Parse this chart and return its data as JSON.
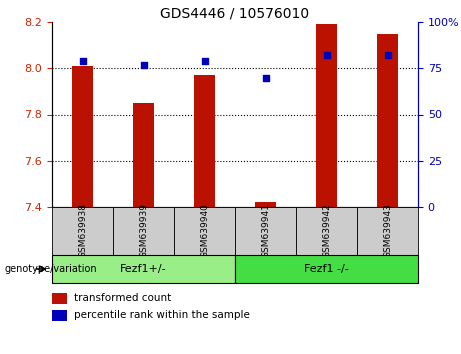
{
  "title": "GDS4446 / 10576010",
  "samples": [
    "GSM639938",
    "GSM639939",
    "GSM639940",
    "GSM639941",
    "GSM639942",
    "GSM639943"
  ],
  "red_values": [
    8.01,
    7.85,
    7.97,
    7.42,
    8.19,
    8.15
  ],
  "blue_values": [
    79,
    77,
    79,
    70,
    82,
    82
  ],
  "ylim_left": [
    7.4,
    8.2
  ],
  "ylim_right": [
    0,
    100
  ],
  "yticks_left": [
    7.4,
    7.6,
    7.8,
    8.0,
    8.2
  ],
  "yticks_right": [
    0,
    25,
    50,
    75,
    100
  ],
  "grid_lines": [
    8.0,
    7.8,
    7.6
  ],
  "bar_color": "#bb1100",
  "dot_color": "#0000bb",
  "bar_width": 0.35,
  "groups": [
    {
      "label": "Fezf1+/-",
      "indices": [
        0,
        1,
        2
      ],
      "color": "#99ee88"
    },
    {
      "label": "Fezf1 -/-",
      "indices": [
        3,
        4,
        5
      ],
      "color": "#44dd44"
    }
  ],
  "group_label_prefix": "genotype/variation",
  "legend_red": "transformed count",
  "legend_blue": "percentile rank within the sample",
  "tick_label_color_left": "#cc2200",
  "tick_label_color_right": "#0000bb",
  "sample_box_color": "#cccccc",
  "xlabel_fontsize": 6.5,
  "title_fontsize": 10
}
